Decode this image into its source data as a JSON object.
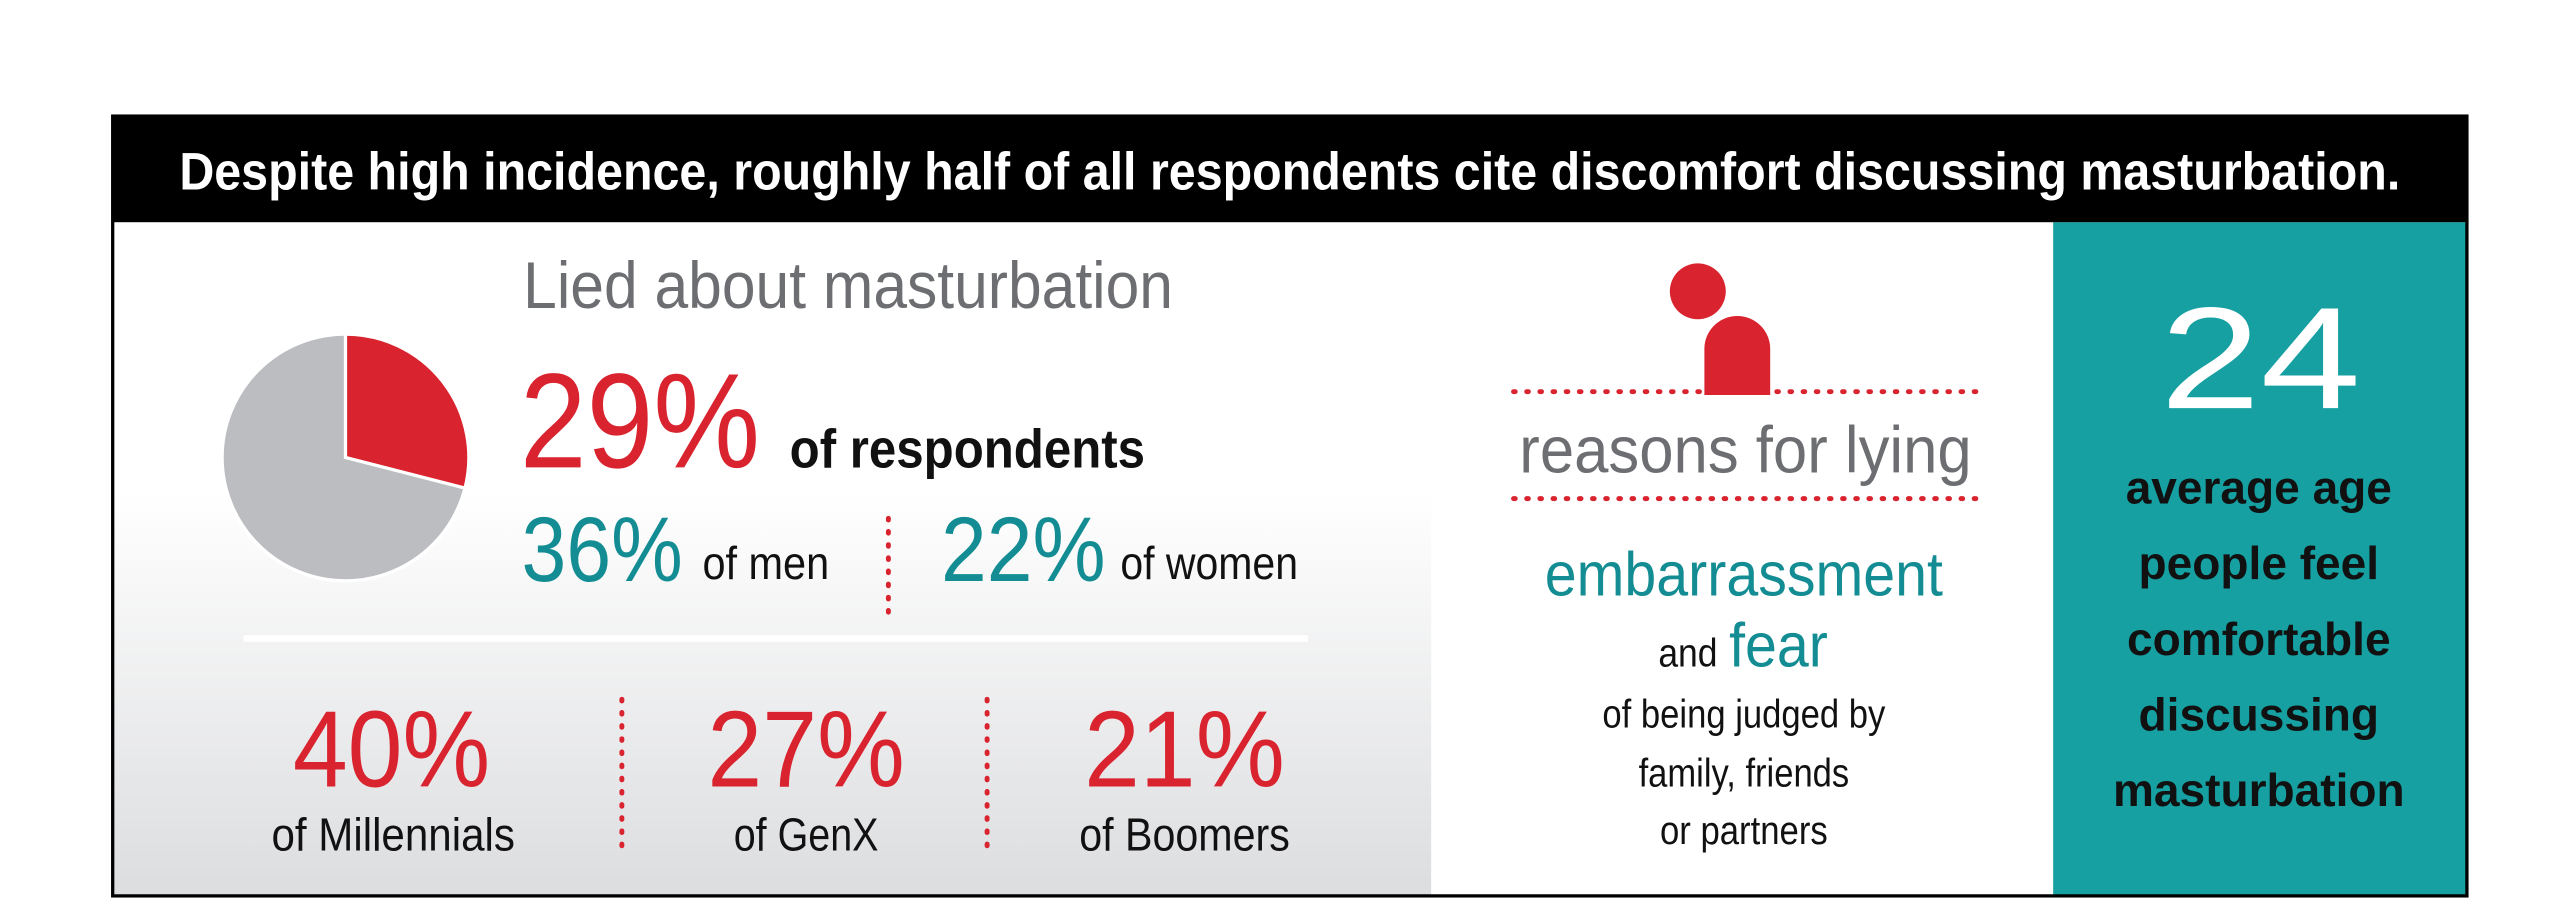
{
  "header": {
    "title": "Despite high incidence, roughly half of all respondents cite discomfort discussing masturbation."
  },
  "lied": {
    "heading": "Lied about masturbation",
    "overall": {
      "value": 29,
      "label": "29%"
    },
    "overall_text": "of respondents",
    "by_gender": [
      {
        "value": "36%",
        "text": "of men"
      },
      {
        "value": "22%",
        "text": "of women"
      }
    ],
    "by_generation": [
      {
        "value": "40%",
        "text": "of Millennials"
      },
      {
        "value": "27%",
        "text": "of GenX"
      },
      {
        "value": "21%",
        "text": "of Boomers"
      }
    ]
  },
  "reasons": {
    "heading": "reasons for lying",
    "primary": "embarrassment",
    "connector": "and",
    "secondary": "fear",
    "detail": [
      "of being judged by",
      "family, friends",
      "or partners"
    ]
  },
  "average_age": {
    "value": "24",
    "lines": [
      "average age",
      "people feel",
      "comfortable",
      "discussing",
      "masturbation"
    ]
  }
}
